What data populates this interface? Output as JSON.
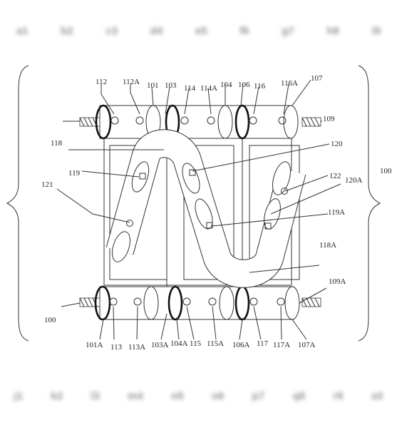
{
  "header_blur": [
    "a1",
    "b2",
    "c3",
    "d4",
    "e5",
    "f6",
    "g7",
    "h8",
    "i9"
  ],
  "footer_blur": [
    "j1",
    "k2",
    "l3",
    "m4",
    "n5",
    "o6",
    "p7",
    "q8",
    "r9",
    "s0"
  ],
  "labels": {
    "l112": "112",
    "l112A": "112A",
    "l101": "101",
    "l103": "103",
    "l114": "114",
    "l114A": "114A",
    "l104": "104",
    "l106": "106",
    "l116": "116",
    "l116A": "116A",
    "l107": "107",
    "l109": "109",
    "l118": "118",
    "l120": "120",
    "l100r": "100",
    "l119": "119",
    "l122": "122",
    "l120A": "120A",
    "l121": "121",
    "l119A": "119A",
    "l118A": "118A",
    "l109A": "109A",
    "l100l": "100",
    "l101A": "101A",
    "l113": "113",
    "l113A": "113A",
    "l103A": "103A",
    "l104A": "104A",
    "l115": "115",
    "l115A": "115A",
    "l106A": "106A",
    "l117": "117",
    "l117A": "117A",
    "l107A": "107A"
  }
}
